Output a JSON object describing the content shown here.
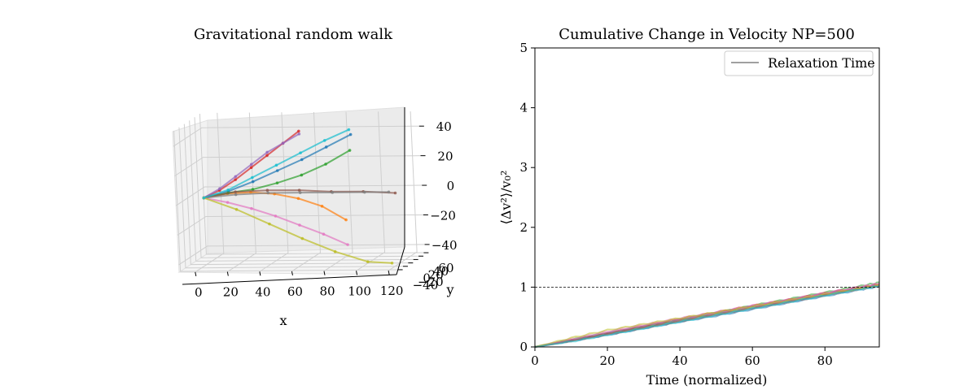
{
  "chart_data": [
    {
      "type": "line",
      "projection": "3d",
      "title": "Gravitational random walk",
      "xlabel": "x",
      "ylabel": "y",
      "zlabel": "",
      "x_ticks": [
        "0",
        "20",
        "40",
        "60",
        "80",
        "100",
        "120"
      ],
      "y_ticks": [
        "−40",
        "−20",
        "0",
        "20",
        "40",
        "60"
      ],
      "z_ticks": [
        "−40",
        "−20",
        "0",
        "20",
        "40"
      ],
      "xlim": [
        -10,
        125
      ],
      "ylim": [
        -45,
        65
      ],
      "zlim": [
        -45,
        50
      ],
      "series": [
        {
          "color": "#1f77b4",
          "points": [
            [
              0,
              0,
              0
            ],
            [
              15,
              3,
              4
            ],
            [
              30,
              6,
              10
            ],
            [
              45,
              9,
              17
            ],
            [
              60,
              12,
              24
            ],
            [
              75,
              15,
              32
            ],
            [
              90,
              18,
              40
            ]
          ]
        },
        {
          "color": "#ff7f0e",
          "points": [
            [
              0,
              0,
              0
            ],
            [
              15,
              -2,
              3
            ],
            [
              30,
              -4,
              4
            ],
            [
              45,
              -6,
              3
            ],
            [
              60,
              -8,
              0
            ],
            [
              75,
              -11,
              -5
            ],
            [
              90,
              -14,
              -14
            ]
          ]
        },
        {
          "color": "#2ca02c",
          "points": [
            [
              0,
              0,
              0
            ],
            [
              15,
              2,
              3
            ],
            [
              30,
              4,
              5
            ],
            [
              45,
              6,
              9
            ],
            [
              60,
              8,
              14
            ],
            [
              75,
              10,
              21
            ],
            [
              90,
              12,
              30
            ]
          ]
        },
        {
          "color": "#d62728",
          "points": [
            [
              0,
              0,
              0
            ],
            [
              10,
              0,
              5
            ],
            [
              20,
              1,
              12
            ],
            [
              30,
              2,
              20
            ],
            [
              40,
              3,
              28
            ],
            [
              50,
              4,
              36
            ],
            [
              60,
              5,
              44
            ]
          ]
        },
        {
          "color": "#9467bd",
          "points": [
            [
              0,
              0,
              0
            ],
            [
              10,
              1,
              6
            ],
            [
              20,
              2,
              14
            ],
            [
              30,
              3,
              22
            ],
            [
              40,
              4,
              30
            ],
            [
              50,
              5,
              36
            ],
            [
              60,
              6,
              42
            ]
          ]
        },
        {
          "color": "#8c564b",
          "points": [
            [
              0,
              0,
              0
            ],
            [
              20,
              -1,
              4
            ],
            [
              40,
              -2,
              5
            ],
            [
              60,
              -3,
              5
            ],
            [
              80,
              -4,
              4
            ],
            [
              100,
              -5,
              4
            ],
            [
              120,
              -6,
              3
            ]
          ]
        },
        {
          "color": "#e377c2",
          "points": [
            [
              0,
              0,
              0
            ],
            [
              15,
              -2,
              -3
            ],
            [
              30,
              -4,
              -7
            ],
            [
              45,
              -6,
              -12
            ],
            [
              60,
              -8,
              -18
            ],
            [
              75,
              -10,
              -24
            ],
            [
              90,
              -12,
              -31
            ]
          ]
        },
        {
          "color": "#7f7f7f",
          "points": [
            [
              0,
              0,
              0
            ],
            [
              20,
              0,
              2
            ],
            [
              40,
              0,
              3
            ],
            [
              60,
              0,
              3
            ],
            [
              80,
              0,
              3
            ],
            [
              100,
              0,
              3
            ],
            [
              115,
              0,
              3
            ]
          ]
        },
        {
          "color": "#bcbd22",
          "points": [
            [
              0,
              0,
              0
            ],
            [
              20,
              0,
              -8
            ],
            [
              40,
              0,
              -18
            ],
            [
              60,
              0,
              -28
            ],
            [
              80,
              0,
              -37
            ],
            [
              100,
              0,
              -44
            ],
            [
              115,
              0,
              -45
            ]
          ]
        },
        {
          "color": "#17becf",
          "points": [
            [
              0,
              0,
              0
            ],
            [
              15,
              2,
              5
            ],
            [
              30,
              4,
              13
            ],
            [
              45,
              6,
              21
            ],
            [
              60,
              8,
              29
            ],
            [
              75,
              10,
              37
            ],
            [
              90,
              12,
              44
            ]
          ]
        }
      ]
    },
    {
      "type": "line",
      "title": "Cumulative Change in Velocity NP=500",
      "xlabel": "Time (normalized)",
      "ylabel": "⟨Δv²⟩/v₀²",
      "xlim": [
        0,
        95
      ],
      "ylim": [
        0,
        5
      ],
      "x_ticks": [
        0,
        20,
        40,
        60,
        80
      ],
      "y_ticks": [
        0,
        1,
        2,
        3,
        4,
        5
      ],
      "legend": {
        "position": "top-right",
        "entries": [
          "Relaxation Time"
        ]
      },
      "reference_line": {
        "y": 1,
        "label": "Relaxation Time",
        "style": "dashed",
        "color": "#000000"
      },
      "series": [
        {
          "color": "#1f77b4",
          "x": [
            0,
            10,
            20,
            30,
            40,
            50,
            60,
            70,
            80,
            90,
            95
          ],
          "y": [
            0,
            0.1,
            0.2,
            0.31,
            0.42,
            0.52,
            0.63,
            0.74,
            0.85,
            0.96,
            1.01
          ]
        },
        {
          "color": "#ff7f0e",
          "x": [
            0,
            10,
            20,
            30,
            40,
            50,
            60,
            70,
            80,
            90,
            95
          ],
          "y": [
            0,
            0.11,
            0.22,
            0.33,
            0.44,
            0.55,
            0.66,
            0.77,
            0.88,
            0.99,
            1.04
          ]
        },
        {
          "color": "#2ca02c",
          "x": [
            0,
            10,
            20,
            30,
            40,
            50,
            60,
            70,
            80,
            90,
            95
          ],
          "y": [
            0,
            0.12,
            0.23,
            0.34,
            0.46,
            0.57,
            0.69,
            0.8,
            0.91,
            1.02,
            1.08
          ]
        },
        {
          "color": "#d62728",
          "x": [
            0,
            10,
            20,
            30,
            40,
            50,
            60,
            70,
            80,
            90,
            95
          ],
          "y": [
            0,
            0.11,
            0.23,
            0.35,
            0.47,
            0.58,
            0.69,
            0.79,
            0.9,
            1.0,
            1.05
          ]
        },
        {
          "color": "#9467bd",
          "x": [
            0,
            10,
            20,
            30,
            40,
            50,
            60,
            70,
            80,
            90,
            95
          ],
          "y": [
            0,
            0.12,
            0.24,
            0.35,
            0.46,
            0.57,
            0.68,
            0.78,
            0.89,
            0.99,
            1.04
          ]
        },
        {
          "color": "#8c564b",
          "x": [
            0,
            10,
            20,
            30,
            40,
            50,
            60,
            70,
            80,
            90,
            95
          ],
          "y": [
            0,
            0.1,
            0.21,
            0.32,
            0.43,
            0.54,
            0.65,
            0.76,
            0.87,
            0.98,
            1.03
          ]
        },
        {
          "color": "#e377c2",
          "x": [
            0,
            10,
            20,
            30,
            40,
            50,
            60,
            70,
            80,
            90,
            95
          ],
          "y": [
            0,
            0.13,
            0.26,
            0.37,
            0.48,
            0.58,
            0.69,
            0.79,
            0.9,
            1.01,
            1.06
          ]
        },
        {
          "color": "#7f7f7f",
          "x": [
            0,
            10,
            20,
            30,
            40,
            50,
            60,
            70,
            80,
            90,
            95
          ],
          "y": [
            0,
            0.1,
            0.21,
            0.32,
            0.43,
            0.54,
            0.65,
            0.75,
            0.86,
            0.97,
            1.02
          ]
        },
        {
          "color": "#bcbd22",
          "x": [
            0,
            10,
            20,
            30,
            40,
            50,
            60,
            70,
            80,
            90,
            95
          ],
          "y": [
            0,
            0.15,
            0.28,
            0.38,
            0.48,
            0.58,
            0.68,
            0.78,
            0.88,
            0.98,
            1.03
          ]
        },
        {
          "color": "#17becf",
          "x": [
            0,
            10,
            20,
            30,
            40,
            50,
            60,
            70,
            80,
            90,
            95
          ],
          "y": [
            0,
            0.09,
            0.2,
            0.31,
            0.42,
            0.53,
            0.64,
            0.75,
            0.86,
            0.97,
            1.02
          ]
        }
      ]
    }
  ]
}
